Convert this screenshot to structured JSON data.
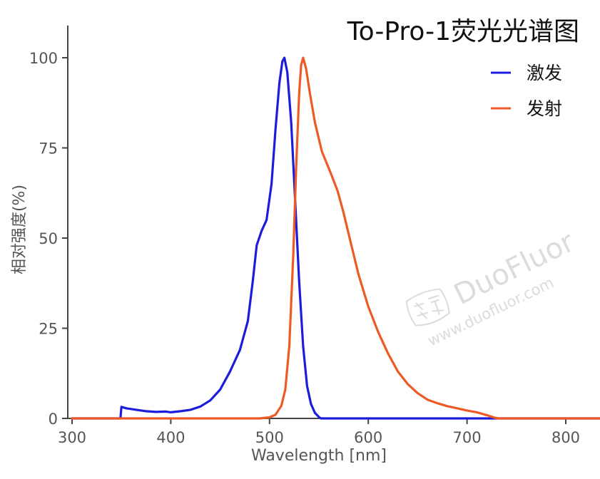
{
  "chart_data": {
    "type": "line",
    "title": "To-Pro-1荧光光谱图",
    "xlabel": "Wavelength [nm]",
    "ylabel": "相对强度(%)",
    "xlim": [
      300,
      850
    ],
    "ylim": [
      0,
      105
    ],
    "xticks": [
      300,
      400,
      500,
      600,
      700,
      800
    ],
    "yticks": [
      0,
      25,
      50,
      75,
      100
    ],
    "grid": false,
    "legend_position": "top-right",
    "series": [
      {
        "name": "激发",
        "color": "#1c1cdc",
        "points": [
          [
            300,
            0
          ],
          [
            349,
            0
          ],
          [
            350,
            3.2
          ],
          [
            355,
            2.8
          ],
          [
            365,
            2.4
          ],
          [
            375,
            2.0
          ],
          [
            385,
            1.8
          ],
          [
            395,
            1.9
          ],
          [
            400,
            1.7
          ],
          [
            410,
            2.0
          ],
          [
            420,
            2.4
          ],
          [
            430,
            3.3
          ],
          [
            440,
            5.0
          ],
          [
            450,
            8.0
          ],
          [
            460,
            13.0
          ],
          [
            470,
            19.0
          ],
          [
            478,
            27.0
          ],
          [
            483,
            38.0
          ],
          [
            487,
            48.0
          ],
          [
            492,
            52.0
          ],
          [
            497,
            55.0
          ],
          [
            502,
            65.0
          ],
          [
            506,
            80.0
          ],
          [
            510,
            93.0
          ],
          [
            513,
            99.0
          ],
          [
            515,
            100.0
          ],
          [
            518,
            96.0
          ],
          [
            522,
            82.0
          ],
          [
            526,
            60.0
          ],
          [
            530,
            38.0
          ],
          [
            534,
            20.0
          ],
          [
            538,
            9.0
          ],
          [
            542,
            4.0
          ],
          [
            546,
            1.5
          ],
          [
            550,
            0.4
          ],
          [
            552,
            0
          ],
          [
            850,
            0
          ]
        ]
      },
      {
        "name": "发射",
        "color": "#ee5a24",
        "points": [
          [
            300,
            0
          ],
          [
            490,
            0
          ],
          [
            500,
            0.3
          ],
          [
            506,
            1.0
          ],
          [
            512,
            3.5
          ],
          [
            516,
            8.0
          ],
          [
            520,
            20.0
          ],
          [
            524,
            45.0
          ],
          [
            527,
            70.0
          ],
          [
            530,
            90.0
          ],
          [
            532,
            98.0
          ],
          [
            534,
            100.0
          ],
          [
            537,
            97.0
          ],
          [
            541,
            90.0
          ],
          [
            546,
            82.0
          ],
          [
            553,
            74.0
          ],
          [
            562,
            68.0
          ],
          [
            569,
            63.0
          ],
          [
            575,
            57.0
          ],
          [
            582,
            49.0
          ],
          [
            590,
            40.0
          ],
          [
            600,
            31.0
          ],
          [
            610,
            24.0
          ],
          [
            620,
            18.0
          ],
          [
            630,
            13.0
          ],
          [
            640,
            9.5
          ],
          [
            650,
            7.0
          ],
          [
            660,
            5.2
          ],
          [
            670,
            4.2
          ],
          [
            680,
            3.4
          ],
          [
            690,
            2.8
          ],
          [
            700,
            2.2
          ],
          [
            710,
            1.7
          ],
          [
            720,
            0.9
          ],
          [
            728,
            0.2
          ],
          [
            732,
            0
          ],
          [
            850,
            0
          ]
        ]
      }
    ]
  },
  "watermark": {
    "brand": "DuoFluor",
    "domain": "www.duofluor.com",
    "seal": "多荧"
  }
}
